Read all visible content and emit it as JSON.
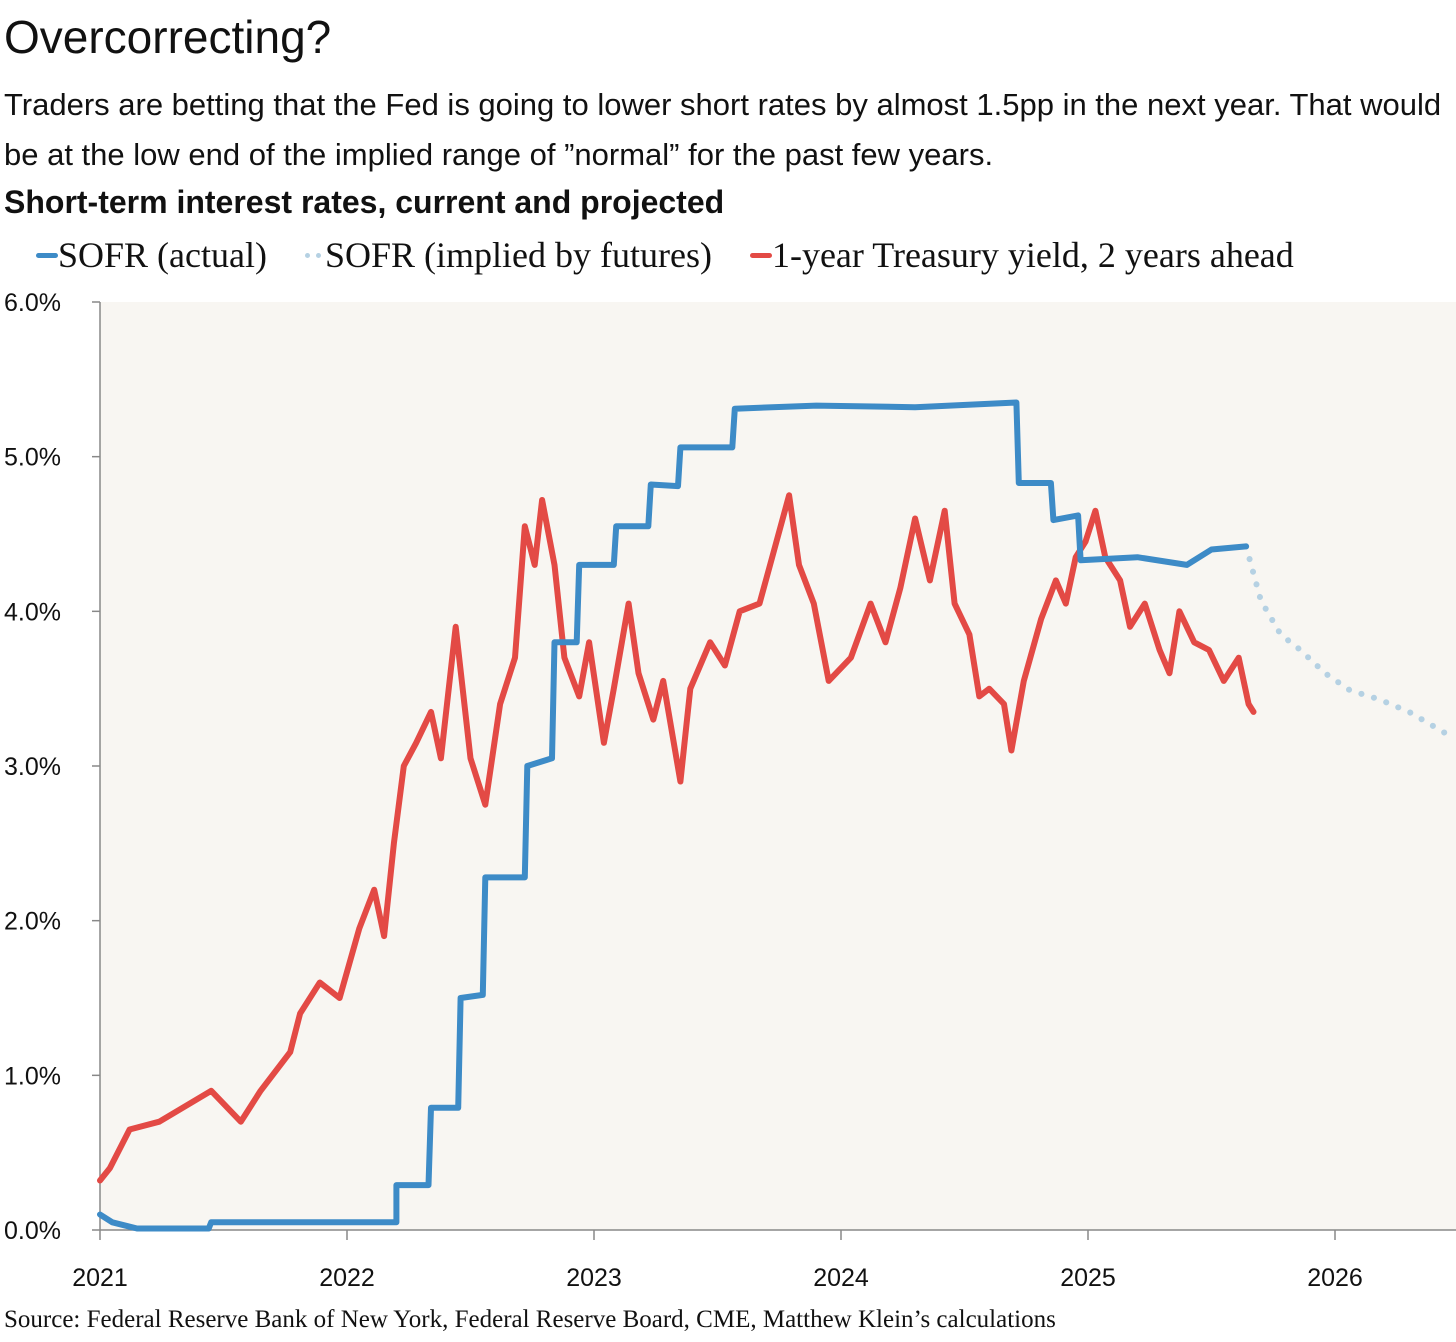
{
  "title": "Overcorrecting?",
  "subtitle": "Traders are betting that the Fed is going to lower short rates by almost 1.5pp in the next year. That would be at the low end of the implied range of ”normal” for the past few years.",
  "source": "Source: Federal Reserve Bank of New York, Federal Reserve Board, CME, Matthew Klein’s calculations",
  "chart_data": {
    "type": "line",
    "title": "Short-term interest rates, current and projected",
    "xlabel": "",
    "ylabel": "",
    "xlim": [
      2021,
      2026.48
    ],
    "ylim": [
      0,
      6
    ],
    "x_ticks": [
      2021,
      2022,
      2023,
      2024,
      2025,
      2026
    ],
    "x_tick_labels": [
      "2021",
      "2022",
      "2023",
      "2024",
      "2025",
      "2026"
    ],
    "y_ticks": [
      0,
      1,
      2,
      3,
      4,
      5,
      6
    ],
    "y_tick_labels": [
      "0.0%",
      "1.0%",
      "2.0%",
      "3.0%",
      "4.0%",
      "5.0%",
      "6.0%"
    ],
    "grid": false,
    "legend_position": "top",
    "series": [
      {
        "name": "SOFR (actual)",
        "color": "#3d8bc7",
        "style": "solid",
        "points": [
          [
            2021.0,
            0.1
          ],
          [
            2021.05,
            0.05
          ],
          [
            2021.15,
            0.01
          ],
          [
            2021.44,
            0.01
          ],
          [
            2021.45,
            0.05
          ],
          [
            2022.2,
            0.05
          ],
          [
            2022.2,
            0.29
          ],
          [
            2022.33,
            0.29
          ],
          [
            2022.34,
            0.79
          ],
          [
            2022.45,
            0.79
          ],
          [
            2022.46,
            1.5
          ],
          [
            2022.55,
            1.52
          ],
          [
            2022.56,
            2.28
          ],
          [
            2022.72,
            2.28
          ],
          [
            2022.73,
            3.0
          ],
          [
            2022.83,
            3.05
          ],
          [
            2022.84,
            3.8
          ],
          [
            2022.93,
            3.8
          ],
          [
            2022.94,
            4.3
          ],
          [
            2023.08,
            4.3
          ],
          [
            2023.09,
            4.55
          ],
          [
            2023.22,
            4.55
          ],
          [
            2023.23,
            4.82
          ],
          [
            2023.34,
            4.81
          ],
          [
            2023.35,
            5.06
          ],
          [
            2023.56,
            5.06
          ],
          [
            2023.57,
            5.31
          ],
          [
            2023.9,
            5.33
          ],
          [
            2024.3,
            5.32
          ],
          [
            2024.71,
            5.35
          ],
          [
            2024.72,
            4.83
          ],
          [
            2024.85,
            4.83
          ],
          [
            2024.86,
            4.59
          ],
          [
            2024.96,
            4.62
          ],
          [
            2024.97,
            4.33
          ],
          [
            2025.2,
            4.35
          ],
          [
            2025.4,
            4.3
          ],
          [
            2025.5,
            4.4
          ],
          [
            2025.64,
            4.42
          ]
        ]
      },
      {
        "name": "SOFR (implied by futures)",
        "color": "#b5d1e3",
        "style": "dotted",
        "points": [
          [
            2025.64,
            4.42
          ],
          [
            2025.7,
            4.07
          ],
          [
            2025.78,
            3.85
          ],
          [
            2025.86,
            3.75
          ],
          [
            2025.96,
            3.6
          ],
          [
            2026.06,
            3.49
          ],
          [
            2026.18,
            3.43
          ],
          [
            2026.3,
            3.35
          ],
          [
            2026.46,
            3.2
          ]
        ]
      },
      {
        "name": "1-year Treasury yield, 2 years ahead",
        "color": "#e34a45",
        "style": "solid",
        "points": [
          [
            2021.0,
            0.32
          ],
          [
            2021.04,
            0.4
          ],
          [
            2021.12,
            0.65
          ],
          [
            2021.24,
            0.7
          ],
          [
            2021.45,
            0.9
          ],
          [
            2021.57,
            0.7
          ],
          [
            2021.65,
            0.9
          ],
          [
            2021.77,
            1.15
          ],
          [
            2021.81,
            1.4
          ],
          [
            2021.89,
            1.6
          ],
          [
            2021.97,
            1.5
          ],
          [
            2022.05,
            1.95
          ],
          [
            2022.11,
            2.2
          ],
          [
            2022.15,
            1.9
          ],
          [
            2022.19,
            2.5
          ],
          [
            2022.23,
            3.0
          ],
          [
            2022.28,
            3.15
          ],
          [
            2022.34,
            3.35
          ],
          [
            2022.38,
            3.05
          ],
          [
            2022.44,
            3.9
          ],
          [
            2022.5,
            3.05
          ],
          [
            2022.56,
            2.75
          ],
          [
            2022.62,
            3.4
          ],
          [
            2022.68,
            3.7
          ],
          [
            2022.72,
            4.55
          ],
          [
            2022.76,
            4.3
          ],
          [
            2022.79,
            4.72
          ],
          [
            2022.84,
            4.3
          ],
          [
            2022.88,
            3.7
          ],
          [
            2022.94,
            3.45
          ],
          [
            2022.98,
            3.8
          ],
          [
            2023.04,
            3.15
          ],
          [
            2023.08,
            3.5
          ],
          [
            2023.14,
            4.05
          ],
          [
            2023.18,
            3.6
          ],
          [
            2023.24,
            3.3
          ],
          [
            2023.28,
            3.55
          ],
          [
            2023.35,
            2.9
          ],
          [
            2023.39,
            3.5
          ],
          [
            2023.47,
            3.8
          ],
          [
            2023.53,
            3.65
          ],
          [
            2023.59,
            4.0
          ],
          [
            2023.67,
            4.05
          ],
          [
            2023.73,
            4.4
          ],
          [
            2023.79,
            4.75
          ],
          [
            2023.83,
            4.3
          ],
          [
            2023.89,
            4.05
          ],
          [
            2023.95,
            3.55
          ],
          [
            2024.04,
            3.7
          ],
          [
            2024.12,
            4.05
          ],
          [
            2024.18,
            3.8
          ],
          [
            2024.24,
            4.15
          ],
          [
            2024.3,
            4.6
          ],
          [
            2024.36,
            4.2
          ],
          [
            2024.42,
            4.65
          ],
          [
            2024.46,
            4.05
          ],
          [
            2024.52,
            3.85
          ],
          [
            2024.56,
            3.45
          ],
          [
            2024.6,
            3.5
          ],
          [
            2024.66,
            3.4
          ],
          [
            2024.69,
            3.1
          ],
          [
            2024.74,
            3.55
          ],
          [
            2024.81,
            3.95
          ],
          [
            2024.87,
            4.2
          ],
          [
            2024.91,
            4.05
          ],
          [
            2024.95,
            4.35
          ],
          [
            2024.99,
            4.45
          ],
          [
            2025.03,
            4.65
          ],
          [
            2025.07,
            4.35
          ],
          [
            2025.13,
            4.2
          ],
          [
            2025.17,
            3.9
          ],
          [
            2025.23,
            4.05
          ],
          [
            2025.29,
            3.75
          ],
          [
            2025.33,
            3.6
          ],
          [
            2025.37,
            4.0
          ],
          [
            2025.43,
            3.8
          ],
          [
            2025.49,
            3.75
          ],
          [
            2025.55,
            3.55
          ],
          [
            2025.61,
            3.7
          ],
          [
            2025.65,
            3.4
          ],
          [
            2025.67,
            3.35
          ]
        ]
      }
    ]
  }
}
